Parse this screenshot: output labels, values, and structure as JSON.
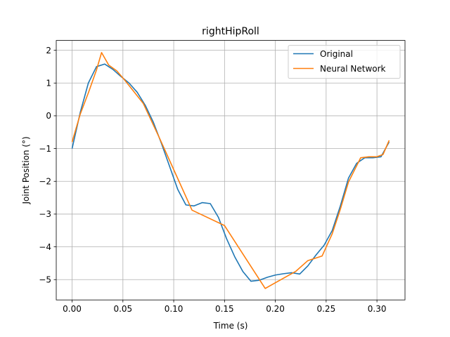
{
  "chart_data": {
    "type": "line",
    "title": "rightHipRoll",
    "xlabel": "Time (s)",
    "ylabel": "Joint Position (°)",
    "xlim": [
      -0.0156,
      0.3276
    ],
    "ylim": [
      -5.62,
      2.3
    ],
    "xticks": [
      0.0,
      0.05,
      0.1,
      0.15,
      0.2,
      0.25,
      0.3
    ],
    "xtick_labels": [
      "0.00",
      "0.05",
      "0.10",
      "0.15",
      "0.20",
      "0.25",
      "0.30"
    ],
    "yticks": [
      -5,
      -4,
      -3,
      -2,
      -1,
      0,
      1,
      2
    ],
    "ytick_labels": [
      "−5",
      "−4",
      "−3",
      "−2",
      "−1",
      "0",
      "1",
      "2"
    ],
    "grid": true,
    "legend_position": "upper right",
    "series": [
      {
        "name": "Original",
        "color": "#1f77b4",
        "x": [
          0.0,
          0.008,
          0.016,
          0.024,
          0.032,
          0.04,
          0.048,
          0.056,
          0.064,
          0.072,
          0.08,
          0.088,
          0.096,
          0.104,
          0.112,
          0.12,
          0.128,
          0.136,
          0.144,
          0.152,
          0.16,
          0.168,
          0.176,
          0.184,
          0.192,
          0.2,
          0.208,
          0.216,
          0.224,
          0.232,
          0.24,
          0.248,
          0.256,
          0.264,
          0.272,
          0.28,
          0.288,
          0.296,
          0.304,
          0.312
        ],
        "y": [
          -1.0,
          0.1,
          1.0,
          1.5,
          1.58,
          1.42,
          1.2,
          1.0,
          0.72,
          0.32,
          -0.2,
          -0.85,
          -1.55,
          -2.25,
          -2.72,
          -2.75,
          -2.65,
          -2.68,
          -3.1,
          -3.75,
          -4.3,
          -4.75,
          -5.05,
          -5.02,
          -4.93,
          -4.86,
          -4.82,
          -4.79,
          -4.83,
          -4.58,
          -4.25,
          -3.95,
          -3.5,
          -2.75,
          -1.9,
          -1.45,
          -1.28,
          -1.28,
          -1.25,
          -0.8
        ]
      },
      {
        "name": "Neural Network",
        "color": "#ff7f0e",
        "x": [
          0.0,
          0.008,
          0.016,
          0.024,
          0.029,
          0.036,
          0.044,
          0.052,
          0.07,
          0.086,
          0.102,
          0.118,
          0.15,
          0.19,
          0.22,
          0.232,
          0.246,
          0.256,
          0.264,
          0.272,
          0.284,
          0.292,
          0.3,
          0.306,
          0.312
        ],
        "y": [
          -0.8,
          0.05,
          0.7,
          1.4,
          1.93,
          1.55,
          1.37,
          1.08,
          0.38,
          -0.68,
          -1.78,
          -2.88,
          -3.35,
          -5.27,
          -4.75,
          -4.42,
          -4.28,
          -3.6,
          -2.85,
          -2.02,
          -1.28,
          -1.25,
          -1.25,
          -1.18,
          -0.75
        ]
      }
    ]
  }
}
